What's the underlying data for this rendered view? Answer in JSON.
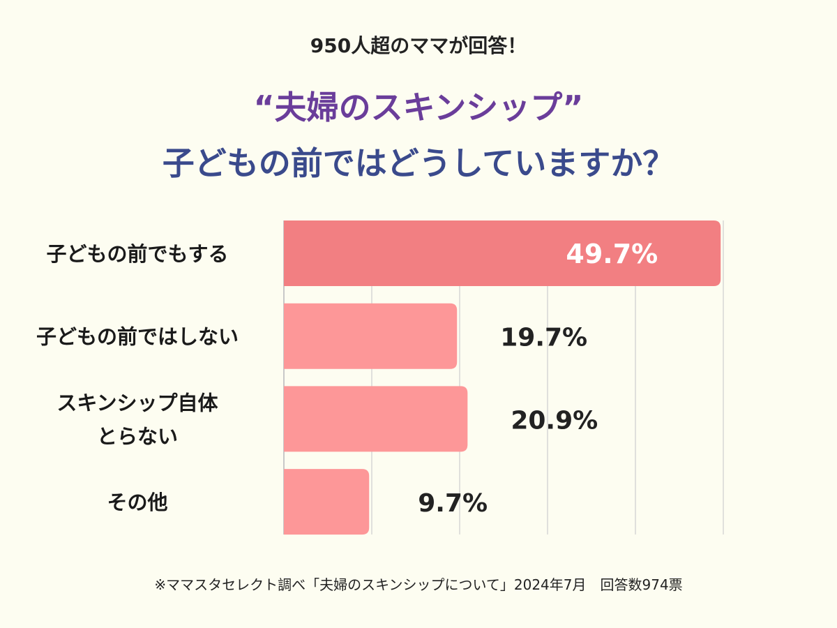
{
  "header": {
    "subtitle": "950人超のママが回答！",
    "title_line1": "“夫婦のスキンシップ”",
    "title_line2": "子どもの前ではどうしていますか？"
  },
  "chart_data": {
    "type": "bar",
    "orientation": "horizontal",
    "categories": [
      [
        "子どもの前でもする"
      ],
      [
        "子どもの前ではしない"
      ],
      [
        "スキンシップ自体",
        "とらない"
      ],
      [
        "その他"
      ]
    ],
    "values": [
      49.7,
      19.7,
      20.9,
      9.7
    ],
    "value_labels": [
      "49.7%",
      "19.7%",
      "20.9%",
      "9.7%"
    ],
    "xlim": [
      0,
      50
    ],
    "grid": true,
    "title": "“夫婦のスキンシップ”子どもの前ではどうしていますか？",
    "colors": {
      "highlight": "#f27f82",
      "default": "#fd9798",
      "grid": "#d6d6d6",
      "axis": "#c8c8c8",
      "label_inside": "#ffffff",
      "label_outside": "#222222"
    }
  },
  "footnote": "※ママスタセレクト調べ「夫婦のスキンシップについて」2024年7月　回答数974票"
}
